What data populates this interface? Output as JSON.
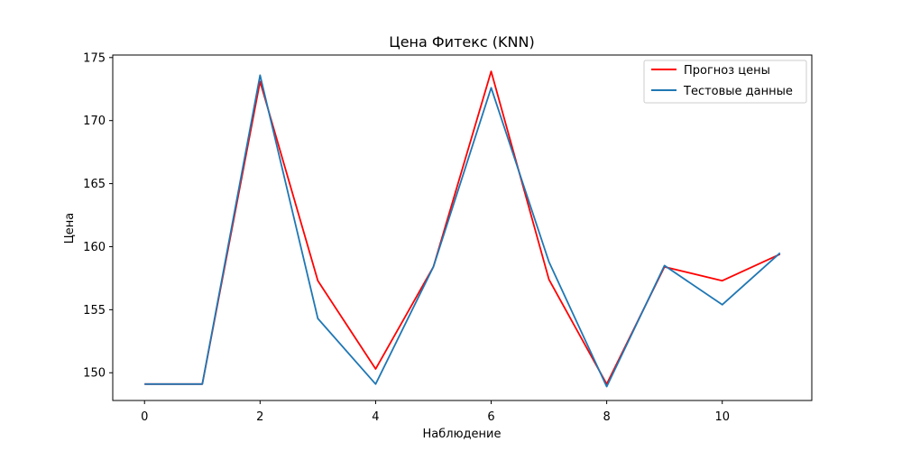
{
  "chart_data": {
    "type": "line",
    "title": "Цена Фитекс (KNN)",
    "xlabel": "Наблюдение",
    "ylabel": "Цена",
    "x": [
      0,
      1,
      2,
      3,
      4,
      5,
      6,
      7,
      8,
      9,
      10,
      11
    ],
    "xlim": [
      -0.55,
      11.55
    ],
    "ylim": [
      147.8,
      175.2
    ],
    "xticks": [
      0,
      2,
      4,
      6,
      8,
      10
    ],
    "yticks": [
      150,
      155,
      160,
      165,
      170,
      175
    ],
    "grid": false,
    "legend_position": "top-right",
    "series": [
      {
        "name": "Прогноз цены",
        "color": "#ff0000",
        "values": [
          149.1,
          149.1,
          173.1,
          157.3,
          150.3,
          158.4,
          173.9,
          157.4,
          149.1,
          158.4,
          157.3,
          159.4
        ]
      },
      {
        "name": "Тестовые данные",
        "color": "#1f77b4",
        "values": [
          149.1,
          149.1,
          173.6,
          154.3,
          149.1,
          158.4,
          172.6,
          158.8,
          148.9,
          158.5,
          155.4,
          159.5
        ]
      }
    ]
  }
}
